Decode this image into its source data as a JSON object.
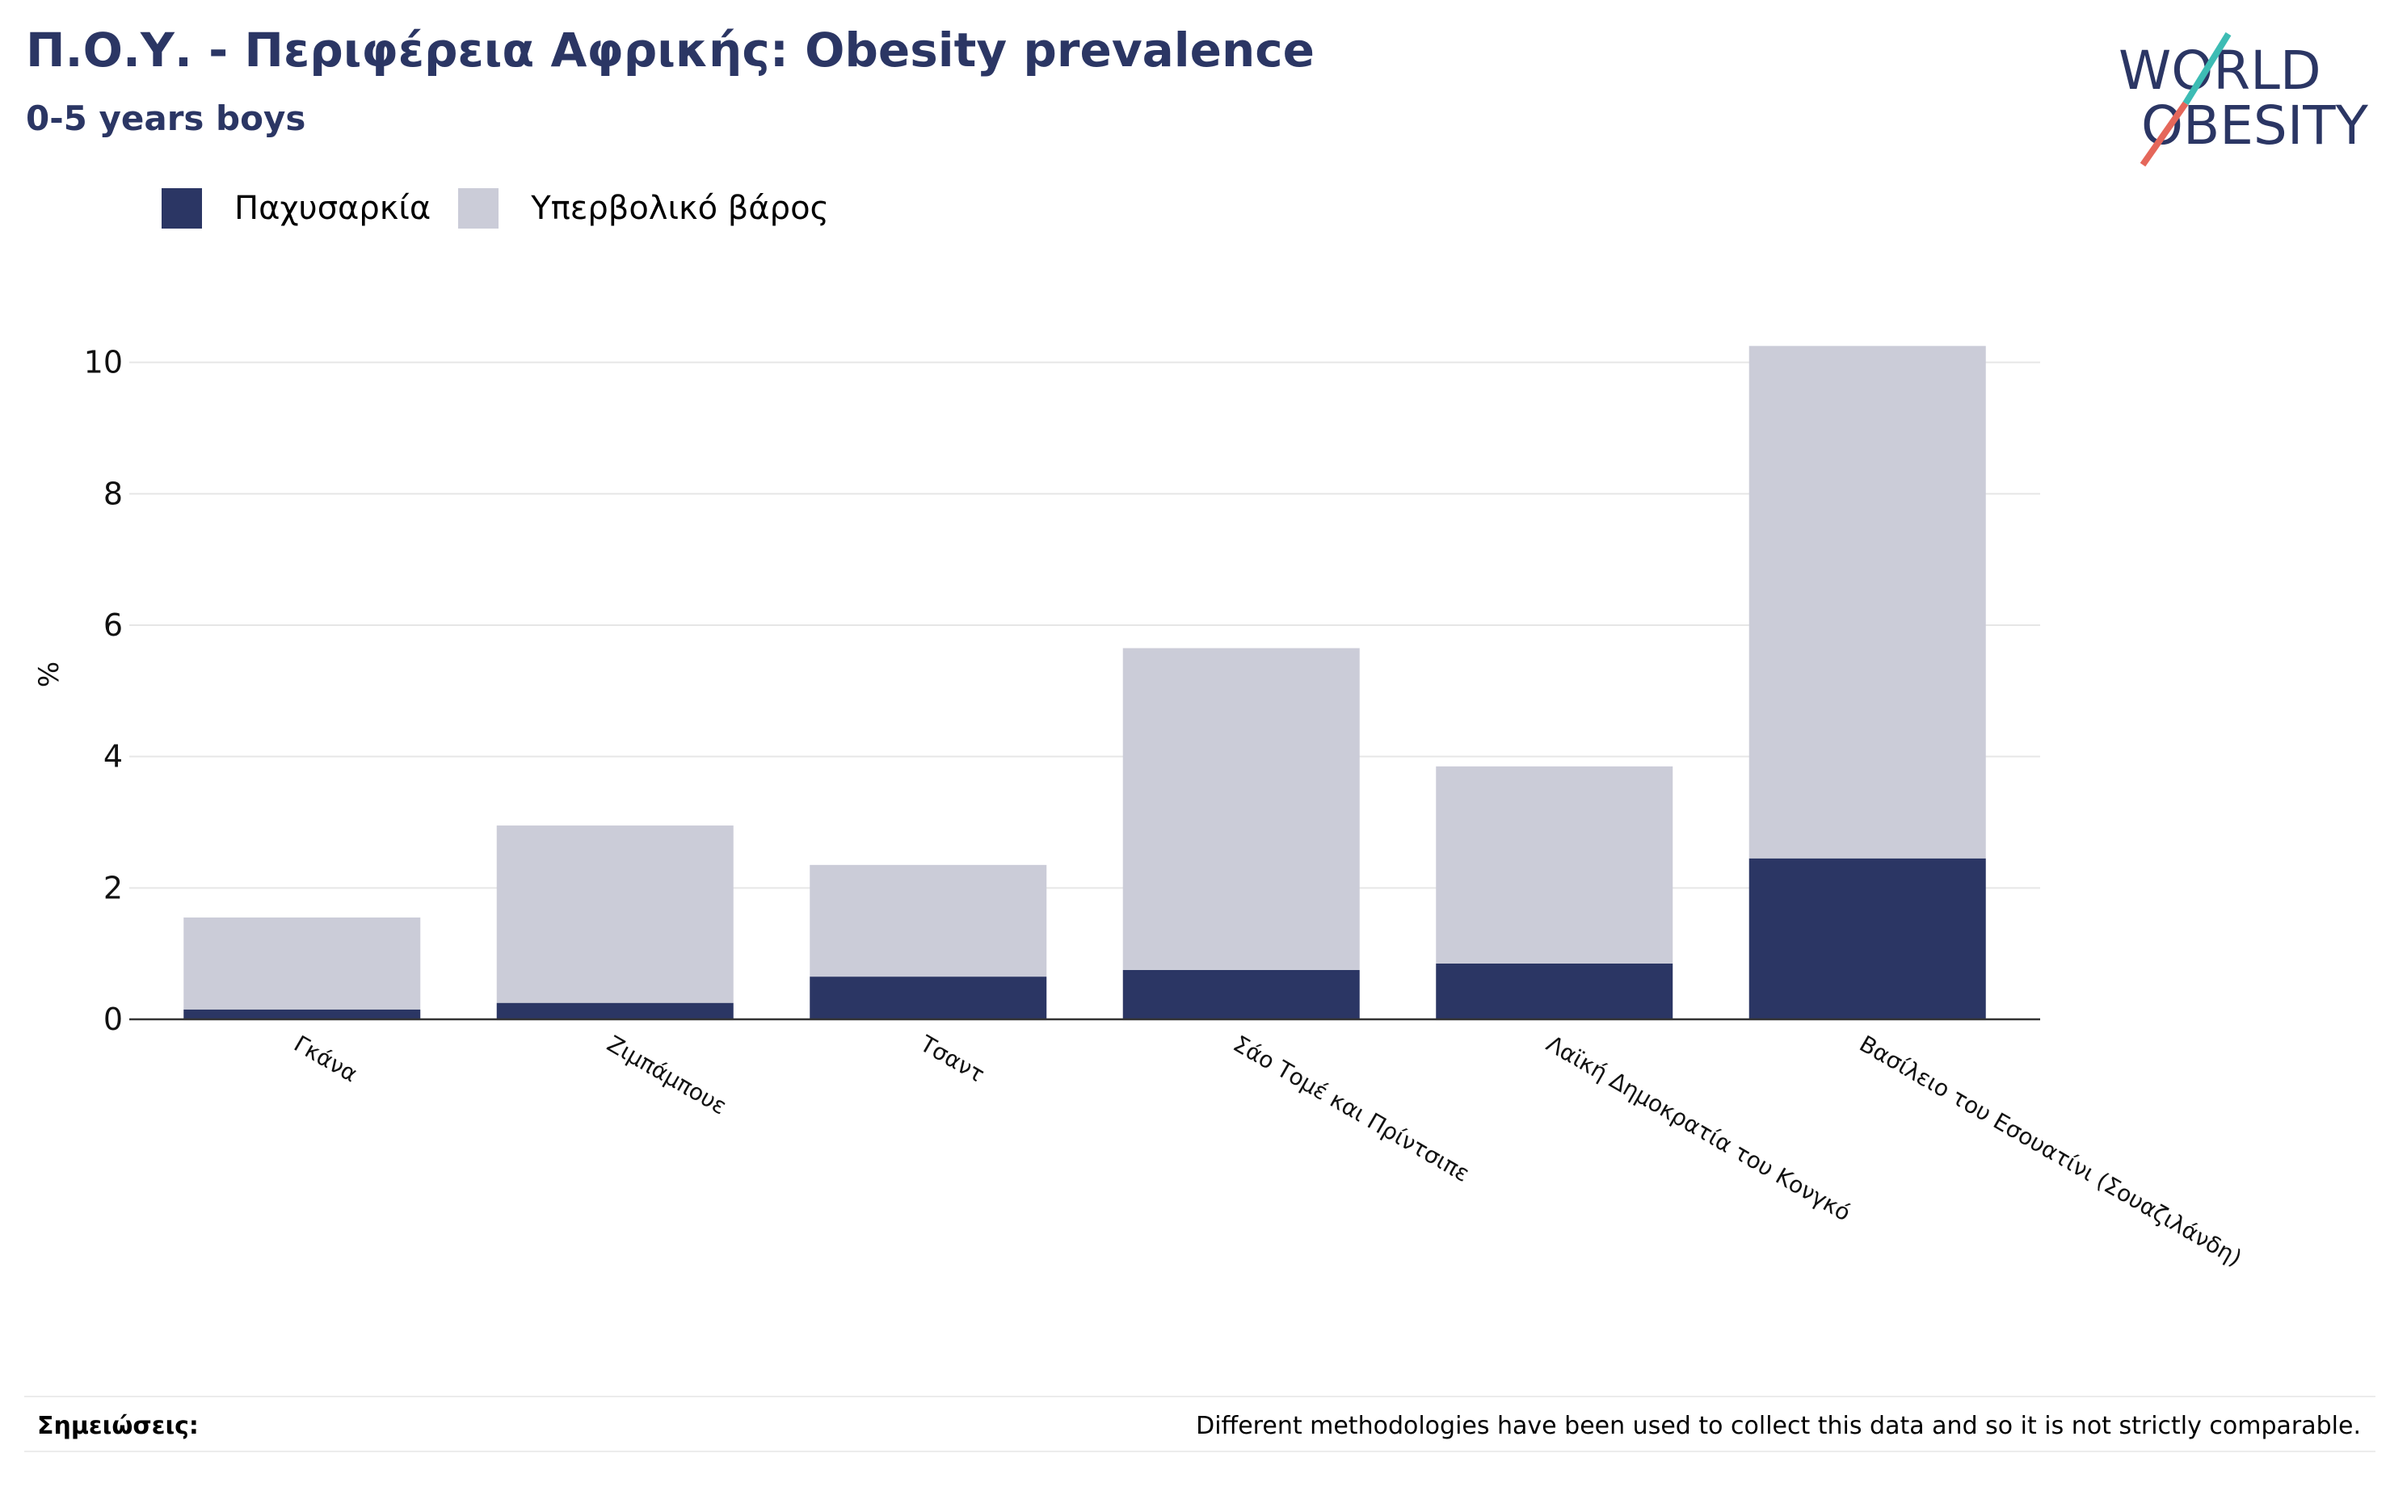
{
  "header": {
    "title": "Π.Ο.Υ. - Περιφέρεια Αφρικής: Obesity prevalence",
    "subtitle": "0-5 years boys"
  },
  "logo": {
    "line1": "WORLD",
    "line2": "OBESITY"
  },
  "colors": {
    "obesity": "#2b3664",
    "overweight": "#cbccd8",
    "title": "#2b3664",
    "logo_text": "#2b3664",
    "logo_slash_top": "#3dbcb4",
    "logo_slash_bottom": "#e5675a",
    "grid": "#e6e6e6",
    "axis": "#333333"
  },
  "legend": [
    {
      "label": "Παχυσαρκία",
      "color_key": "obesity"
    },
    {
      "label": "Υπερβολικό βάρος",
      "color_key": "overweight"
    }
  ],
  "chart_data": {
    "type": "bar",
    "stacked": true,
    "title": "Π.Ο.Υ. - Περιφέρεια Αφρικής: Obesity prevalence",
    "subtitle": "0-5 years boys",
    "xlabel": "",
    "ylabel": "%",
    "ylim": [
      0,
      10.5
    ],
    "yticks": [
      0,
      2,
      4,
      6,
      8,
      10
    ],
    "grid": true,
    "legend_position": "top-left",
    "categories": [
      "Γκάνα",
      "Ζιμπάμπουε",
      "Τσαντ",
      "Σάο Τομέ και Πρίντσιπε",
      "Λαϊκή Δημοκρατία του Κονγκό",
      "Βασίλειο του Εσουατίνι (Σουαζιλάνδη)"
    ],
    "series": [
      {
        "name": "Παχυσαρκία",
        "values": [
          0.15,
          0.25,
          0.65,
          0.75,
          0.85,
          2.45
        ]
      },
      {
        "name": "Υπερβολικό βάρος",
        "values": [
          1.4,
          2.7,
          1.7,
          4.9,
          3.0,
          7.8
        ]
      }
    ]
  },
  "notes": {
    "label": "Σημειώσεις:",
    "text": "Different methodologies have been used to collect this data and so it is not strictly comparable."
  }
}
